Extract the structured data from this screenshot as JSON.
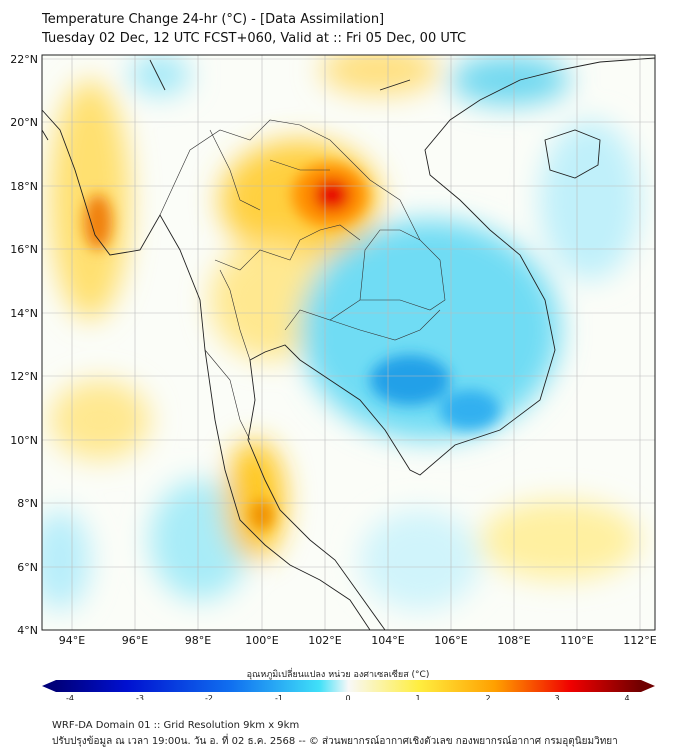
{
  "header": {
    "title": "Temperature Change 24-hr (°C) - [Data Assimilation]",
    "subtitle": "Tuesday 02 Dec, 12 UTC FCST+060, Valid at :: Fri 05 Dec, 00 UTC"
  },
  "map": {
    "lon_labels": [
      "94°E",
      "96°E",
      "98°E",
      "100°E",
      "102°E",
      "104°E",
      "106°E",
      "108°E",
      "110°E",
      "112°E"
    ],
    "lat_labels": [
      "22°N",
      "20°N",
      "18°N",
      "16°N",
      "14°N",
      "12°N",
      "10°N",
      "8°N",
      "6°N",
      "4°N"
    ]
  },
  "colorbar": {
    "label": "อุณหภูมิเปลี่ยนแปลง หน่วย องศาเซลเซียส (°C)",
    "ticks": [
      "-4",
      "-3",
      "-2",
      "-1",
      "0",
      "1",
      "2",
      "3",
      "4"
    ],
    "min": -4,
    "max": 4
  },
  "footer": {
    "line1": "WRF-DA Domain 01 :: Grid Resolution 9km x 9km",
    "line2": "ปรับปรุงข้อมูล ณ เวลา 19:00น. วัน อ. ที่ 02 ธ.ค. 2568 -- © ส่วนพยากรณ์อากาศเชิงตัวเลข กองพยากรณ์อากาศ กรมอุตุนิยมวิทยา"
  }
}
